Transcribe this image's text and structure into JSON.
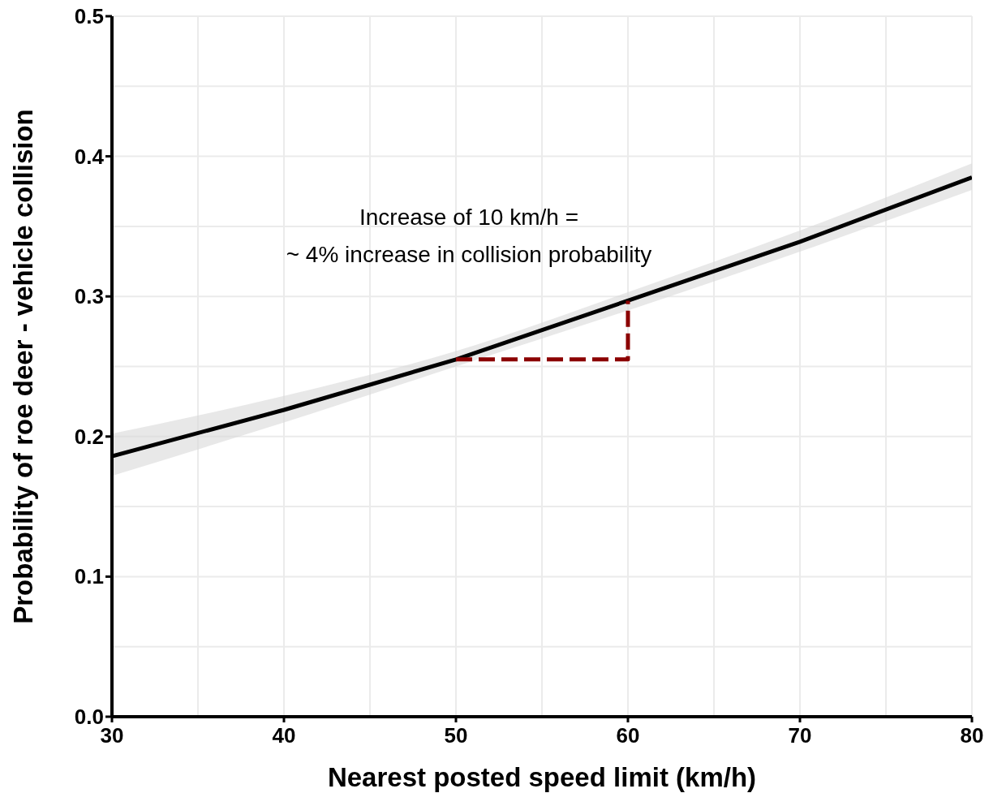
{
  "chart_data": {
    "type": "line",
    "xlabel": "Nearest posted speed limit (km/h)",
    "ylabel": "Probability of roe deer - vehicle collision",
    "xlim": [
      30,
      80
    ],
    "ylim": [
      0,
      0.5
    ],
    "xticks": [
      30,
      {
        "value": 35,
        "label": null
      },
      40,
      {
        "value": 45,
        "label": null
      },
      50,
      {
        "value": 55,
        "label": null
      },
      60,
      {
        "value": 65,
        "label": null
      },
      70,
      {
        "value": 75,
        "label": null
      },
      80
    ],
    "yticks": [
      {
        "value": 0,
        "label": "0.0"
      },
      {
        "value": 0.05,
        "label": null
      },
      0.1,
      {
        "value": 0.15,
        "label": null
      },
      0.2,
      {
        "value": 0.25,
        "label": null
      },
      0.3,
      {
        "value": 0.35,
        "label": null
      },
      0.4,
      {
        "value": 0.45,
        "label": null
      },
      0.5
    ],
    "grid": true,
    "marker": "none",
    "series": [
      {
        "color": "#000000",
        "line_style": "solid",
        "x": [
          30,
          40,
          50,
          60,
          70,
          80
        ],
        "values": [
          0.186,
          0.219,
          0.255,
          0.297,
          0.339,
          0.385
        ],
        "lower": [
          0.172,
          0.21,
          0.25,
          0.29,
          0.332,
          0.376
        ],
        "upper": [
          0.202,
          0.229,
          0.261,
          0.303,
          0.347,
          0.395
        ]
      },
      {
        "color": "#8b0000",
        "line_style": "dashed",
        "x": [
          50,
          60,
          60
        ],
        "values": [
          0.255,
          0.255,
          0.297
        ]
      }
    ],
    "annotations": [
      "Increase of 10 km/h =",
      "~ 4% increase in collision probability"
    ]
  }
}
